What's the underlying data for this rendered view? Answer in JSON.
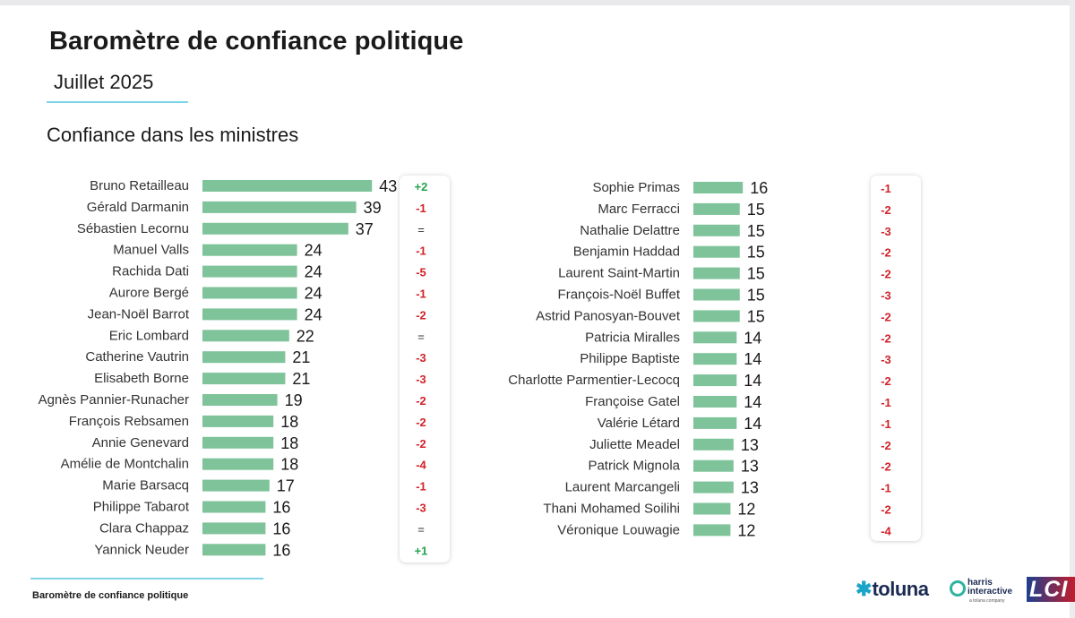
{
  "header": {
    "title": "Baromètre de confiance politique",
    "subtitle": "Juillet 2025",
    "section": "Confiance dans les ministres"
  },
  "footer": {
    "text": "Baromètre de confiance politique"
  },
  "logos": {
    "toluna": "toluna",
    "harris_line1": "harris",
    "harris_line2": "interactive",
    "harris_line3": "a toluna company",
    "lci": "LCI"
  },
  "colors": {
    "bar": "#7ec39a",
    "negative": "#d2222a",
    "positive": "#23a34a",
    "neutral": "#333333",
    "accent_rule": "#7fd4e6"
  },
  "chart_data": [
    {
      "type": "bar",
      "orientation": "horizontal",
      "categories": [
        "Bruno Retailleau",
        "Gérald Darmanin",
        "Sébastien Lecornu",
        "Manuel Valls",
        "Rachida Dati",
        "Aurore Bergé",
        "Jean-Noël Barrot",
        "Eric Lombard",
        "Catherine Vautrin",
        "Elisabeth Borne",
        "Agnès Pannier-Runacher",
        "François Rebsamen",
        "Annie Genevard",
        "Amélie de Montchalin",
        "Marie Barsacq",
        "Philippe Tabarot",
        "Clara Chappaz",
        "Yannick Neuder"
      ],
      "values": [
        43,
        39,
        37,
        24,
        24,
        24,
        24,
        22,
        21,
        21,
        19,
        18,
        18,
        18,
        17,
        16,
        16,
        16
      ],
      "changes": [
        "+2",
        "-1",
        "=",
        "-1",
        "-5",
        "-1",
        "-2",
        "=",
        "-3",
        "-3",
        "-2",
        "-2",
        "-2",
        "-4",
        "-1",
        "-3",
        "=",
        "+1"
      ]
    },
    {
      "type": "bar",
      "orientation": "horizontal",
      "categories": [
        "Sophie Primas",
        "Marc Ferracci",
        "Nathalie Delattre",
        "Benjamin Haddad",
        "Laurent Saint-Martin",
        "François-Noël Buffet",
        "Astrid Panosyan-Bouvet",
        "Patricia Miralles",
        "Philippe Baptiste",
        "Charlotte Parmentier-Lecocq",
        "Françoise Gatel",
        "Valérie Létard",
        "Juliette Meadel",
        "Patrick Mignola",
        "Laurent Marcangeli",
        "Thani Mohamed Soilihi",
        "Véronique Louwagie"
      ],
      "values": [
        16,
        15,
        15,
        15,
        15,
        15,
        15,
        14,
        14,
        14,
        14,
        14,
        13,
        13,
        13,
        12,
        12
      ],
      "changes": [
        "-1",
        "-2",
        "-3",
        "-2",
        "-2",
        "-3",
        "-2",
        "-2",
        "-3",
        "-2",
        "-1",
        "-1",
        "-2",
        "-2",
        "-1",
        "-2",
        "-4"
      ]
    }
  ]
}
